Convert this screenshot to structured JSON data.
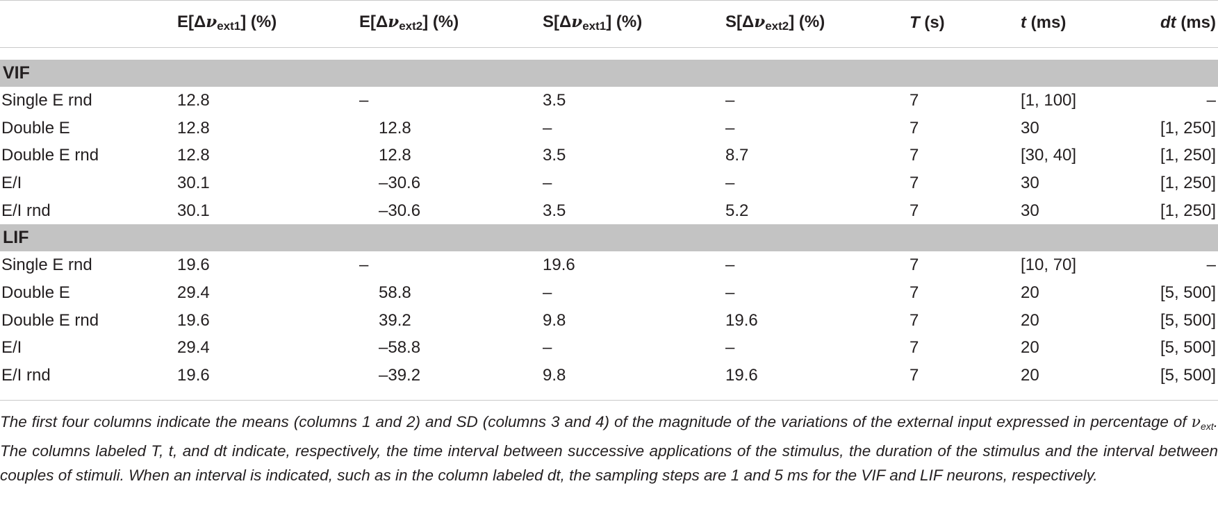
{
  "table": {
    "headers": {
      "h1": "E[Δ",
      "h1_nu": "ν",
      "h1_sub": "ext1",
      "h1_tail": "] (%)",
      "h2": "E[Δ",
      "h2_nu": "ν",
      "h2_sub": "ext2",
      "h2_tail": "] (%)",
      "h3": "S[Δ",
      "h3_nu": "ν",
      "h3_sub": "ext1",
      "h3_tail": "] (%)",
      "h4": "S[Δ",
      "h4_nu": "ν",
      "h4_sub": "ext2",
      "h4_tail": "] (%)",
      "h5_var": "T",
      "h5_unit": " (s)",
      "h6_var": "t",
      "h6_unit": " (ms)",
      "h7_var": "dt",
      "h7_unit": " (ms)"
    },
    "sections": [
      {
        "title": "VIF",
        "rows": [
          [
            "Single E rnd",
            "12.8",
            "–",
            "3.5",
            "–",
            "7",
            "[1, 100]",
            "–"
          ],
          [
            "Double E",
            "12.8",
            "12.8",
            "–",
            "–",
            "7",
            "30",
            "[1, 250]"
          ],
          [
            "Double E rnd",
            "12.8",
            "12.8",
            "3.5",
            "8.7",
            "7",
            "[30, 40]",
            "[1, 250]"
          ],
          [
            "E/I",
            "30.1",
            "–30.6",
            "–",
            "–",
            "7",
            "30",
            "[1, 250]"
          ],
          [
            "E/I rnd",
            "30.1",
            "–30.6",
            "3.5",
            "5.2",
            "7",
            "30",
            "[1, 250]"
          ]
        ]
      },
      {
        "title": "LIF",
        "rows": [
          [
            "Single E rnd",
            "19.6",
            "–",
            "19.6",
            "–",
            "7",
            "[10, 70]",
            "–"
          ],
          [
            "Double E",
            "29.4",
            "58.8",
            "–",
            "–",
            "7",
            "20",
            "[5, 500]"
          ],
          [
            "Double E rnd",
            "19.6",
            "39.2",
            "9.8",
            "19.6",
            "7",
            "20",
            "[5, 500]"
          ],
          [
            "E/I",
            "29.4",
            "–58.8",
            "–",
            "–",
            "7",
            "20",
            "[5, 500]"
          ],
          [
            "E/I rnd",
            "19.6",
            "–39.2",
            "9.8",
            "19.6",
            "7",
            "20",
            "[5, 500]"
          ]
        ]
      }
    ]
  },
  "caption": {
    "part1": "The first four columns indicate the means (columns 1 and 2) and SD (columns 3 and 4) of the magnitude of the variations of the external input expressed in percentage of ",
    "nu": "ν",
    "nu_sub": "ext",
    "part2": ". The columns labeled T, t, and dt indicate, respectively, the time interval between successive applications of the stimulus, the duration of the stimulus and the interval between couples of stimuli. When an interval is indicated, such as in the column labeled dt, the sampling steps are 1 and 5 ms for the VIF and LIF neurons, respectively."
  }
}
